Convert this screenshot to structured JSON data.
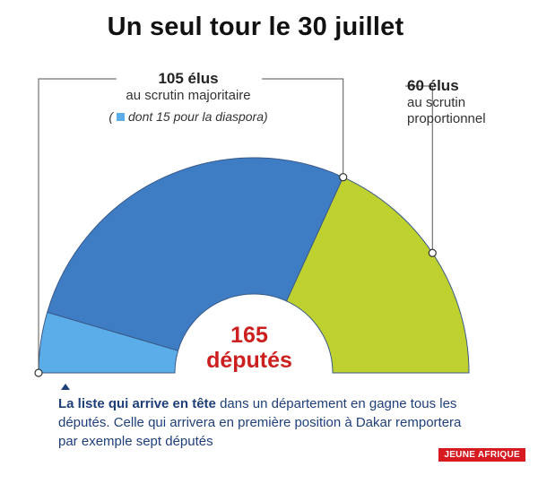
{
  "title": "Un seul tour le 30 juillet",
  "colors": {
    "majoritaire": "#3e7cc4",
    "diaspora": "#5aade8",
    "proportionnel": "#bfd12f",
    "outline": "#3a5a8a",
    "center_text": "#cc1f1f",
    "brand_bg": "#d71920",
    "footnote_text": "#1f3f7a"
  },
  "labels": {
    "majoritaire_count": "105 élus",
    "majoritaire_desc": "au scrutin majoritaire",
    "note_open": "(",
    "note_text": "dont 15 pour la diaspora)",
    "proportionnel_count": "60 élus",
    "proportionnel_desc_1": "au scrutin",
    "proportionnel_desc_2": "proportionnel",
    "center_value": "165",
    "center_unit": "députés"
  },
  "footnote": {
    "bold": "La liste qui arrive en tête",
    "rest": " dans un département en gagne tous les députés. Celle qui arrivera en première position à Dakar remportera par exemple sept députés"
  },
  "brand": "JEUNE AFRIQUE",
  "chart_data": {
    "type": "pie",
    "shape": "half-donut",
    "title": "Un seul tour le 30 juillet",
    "total": 165,
    "total_label": "députés",
    "slices": [
      {
        "name": "diaspora",
        "value": 15,
        "color": "#5aade8"
      },
      {
        "name": "scrutin majoritaire (hors diaspora)",
        "value": 90,
        "color": "#3e7cc4"
      },
      {
        "name": "scrutin proportionnel",
        "value": 60,
        "color": "#bfd12f"
      }
    ],
    "groups": [
      {
        "name": "au scrutin majoritaire",
        "value": 105,
        "label": "105 élus"
      },
      {
        "name": "au scrutin proportionnel",
        "value": 60,
        "label": "60 élus"
      }
    ]
  }
}
